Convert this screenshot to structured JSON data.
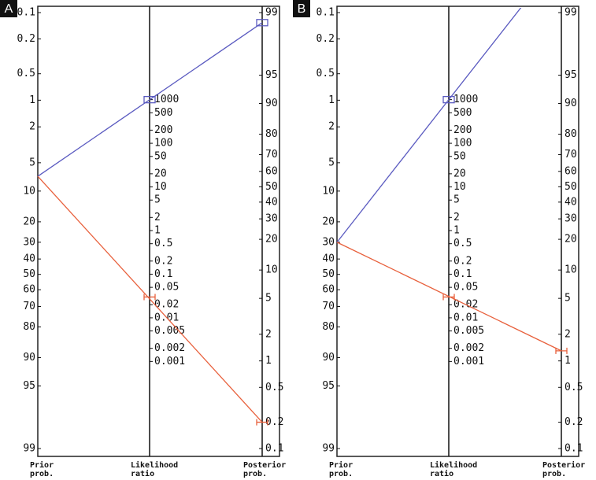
{
  "panels": [
    {
      "letter": "A",
      "prior_ticks": [
        0.1,
        0.2,
        0.5,
        1,
        2,
        5,
        10,
        20,
        30,
        40,
        50,
        60,
        70,
        80,
        90,
        95,
        99
      ],
      "lr_ticks": [
        1000,
        500,
        200,
        100,
        50,
        20,
        10,
        5,
        2,
        1,
        0.5,
        0.2,
        0.1,
        0.05,
        0.02,
        0.01,
        0.005,
        0.002,
        0.001
      ],
      "posterior_ticks": [
        99,
        95,
        90,
        80,
        70,
        60,
        50,
        40,
        30,
        20,
        10,
        5,
        2,
        1,
        0.5,
        0.2,
        0.1
      ],
      "prior_label": [
        "Prior",
        "prob."
      ],
      "lr_label": [
        "Likelihood",
        "ratio"
      ],
      "posterior_label": [
        "Posterior",
        "prob."
      ],
      "lines": [
        {
          "color": "#5a5ac0",
          "prior": 7,
          "lr": 1000,
          "posterior": 98.7
        },
        {
          "color": "#e8603c",
          "prior": 7,
          "lr": 0.03,
          "posterior": 0.2
        }
      ]
    },
    {
      "letter": "B",
      "prior_ticks": [
        0.1,
        0.2,
        0.5,
        1,
        2,
        5,
        10,
        20,
        30,
        40,
        50,
        60,
        70,
        80,
        90,
        95,
        99
      ],
      "lr_ticks": [
        1000,
        500,
        200,
        100,
        50,
        20,
        10,
        5,
        2,
        1,
        0.5,
        0.2,
        0.1,
        0.05,
        0.02,
        0.01,
        0.005,
        0.002,
        0.001
      ],
      "posterior_ticks": [
        99,
        95,
        90,
        80,
        70,
        60,
        50,
        40,
        30,
        20,
        10,
        5,
        2,
        1,
        0.5,
        0.2,
        0.1
      ],
      "prior_label": [
        "Prior",
        "prob."
      ],
      "lr_label": [
        "Likelihood",
        "ratio"
      ],
      "posterior_label": [
        "Posterior",
        "prob."
      ],
      "lines": [
        {
          "color": "#5a5ac0",
          "prior": 30,
          "lr": 1000
        },
        {
          "color": "#e8603c",
          "prior": 30,
          "lr": 0.03,
          "posterior": 1.3
        }
      ]
    }
  ]
}
